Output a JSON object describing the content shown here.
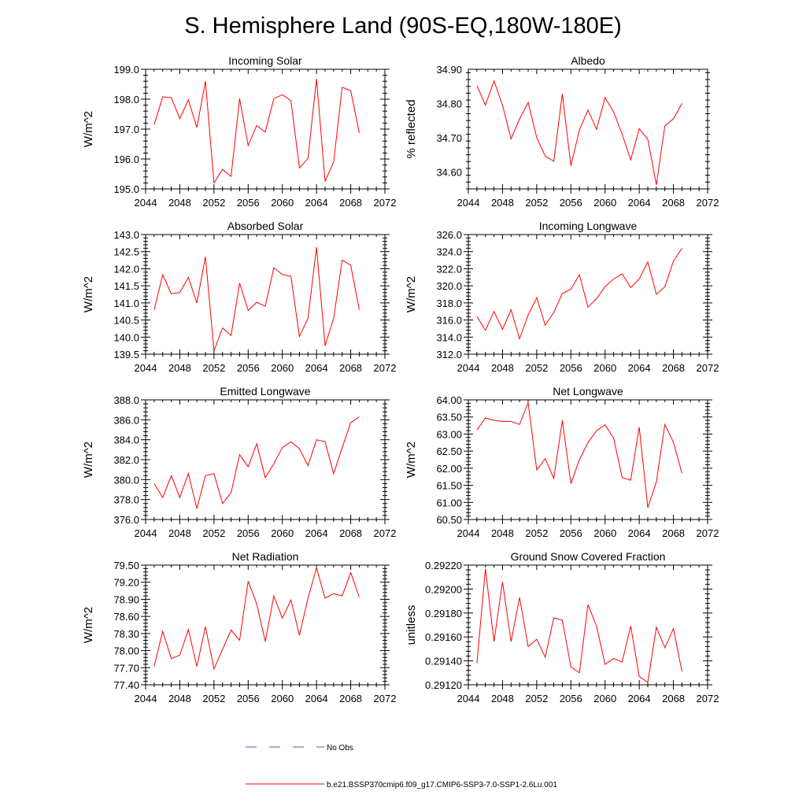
{
  "figure": {
    "title": "S. Hemisphere Land (90S-EQ,180W-180E)",
    "legend": [
      {
        "label": "No Obs",
        "color": "#5a5ab4",
        "dashed": true
      },
      {
        "label": "b.e21.BSSP370cmip6.f09_g17.CMIP6-SSP3-7.0-SSP1-2.6Lu.001",
        "color": "#ff0000",
        "dashed": false
      }
    ]
  },
  "chart_data": [
    {
      "type": "line",
      "title": "Incoming Solar",
      "ylabel": "W/m^2",
      "xlim": [
        2044,
        2072
      ],
      "ylim": [
        195.0,
        199.0
      ],
      "xticks": [
        2044,
        2048,
        2052,
        2056,
        2060,
        2064,
        2068,
        2072
      ],
      "yticks": [
        195.0,
        196.0,
        197.0,
        198.0,
        199.0
      ],
      "ytick_labels": [
        "195.0",
        "196.0",
        "197.0",
        "198.0",
        "199.0"
      ],
      "color": "#ff0000",
      "x": [
        2045,
        2046,
        2047,
        2048,
        2049,
        2050,
        2051,
        2052,
        2053,
        2054,
        2055,
        2056,
        2057,
        2058,
        2059,
        2060,
        2061,
        2062,
        2063,
        2064,
        2065,
        2066,
        2067,
        2068,
        2069
      ],
      "y": [
        197.15,
        198.08,
        198.05,
        197.35,
        197.98,
        197.05,
        198.6,
        195.2,
        195.65,
        195.42,
        198.02,
        196.45,
        197.12,
        196.9,
        198.02,
        198.15,
        197.95,
        195.7,
        196.02,
        198.68,
        195.25,
        195.9,
        198.4,
        198.28,
        196.88
      ]
    },
    {
      "type": "line",
      "title": "Albedo",
      "ylabel": "% reflected",
      "xlim": [
        2044,
        2072
      ],
      "ylim": [
        34.55,
        34.9
      ],
      "xticks": [
        2044,
        2048,
        2052,
        2056,
        2060,
        2064,
        2068,
        2072
      ],
      "yticks": [
        34.6,
        34.7,
        34.8,
        34.9
      ],
      "ytick_labels": [
        "34.60",
        "34.70",
        "34.80",
        "34.90"
      ],
      "color": "#ff0000",
      "x": [
        2045,
        2046,
        2047,
        2048,
        2049,
        2050,
        2051,
        2052,
        2053,
        2054,
        2055,
        2056,
        2057,
        2058,
        2059,
        2060,
        2061,
        2062,
        2063,
        2064,
        2065,
        2066,
        2067,
        2068,
        2069
      ],
      "y": [
        34.852,
        34.795,
        34.866,
        34.795,
        34.696,
        34.755,
        34.803,
        34.7,
        34.646,
        34.631,
        34.828,
        34.618,
        34.722,
        34.781,
        34.724,
        34.817,
        34.775,
        34.71,
        34.635,
        34.726,
        34.695,
        34.562,
        34.735,
        34.755,
        34.8
      ]
    },
    {
      "type": "line",
      "title": "Absorbed Solar",
      "ylabel": "W/m^2",
      "xlim": [
        2044,
        2072
      ],
      "ylim": [
        139.5,
        143.0
      ],
      "xticks": [
        2044,
        2048,
        2052,
        2056,
        2060,
        2064,
        2068,
        2072
      ],
      "yticks": [
        139.5,
        140.0,
        140.5,
        141.0,
        141.5,
        142.0,
        142.5,
        143.0
      ],
      "ytick_labels": [
        "139.5",
        "140.0",
        "140.5",
        "141.0",
        "141.5",
        "142.0",
        "142.5",
        "143.0"
      ],
      "color": "#ff0000",
      "x": [
        2045,
        2046,
        2047,
        2048,
        2049,
        2050,
        2051,
        2052,
        2053,
        2054,
        2055,
        2056,
        2057,
        2058,
        2059,
        2060,
        2061,
        2062,
        2063,
        2064,
        2065,
        2066,
        2067,
        2068,
        2069
      ],
      "y": [
        140.8,
        141.82,
        141.27,
        141.3,
        141.75,
        141.0,
        142.35,
        139.6,
        140.27,
        140.05,
        141.58,
        140.78,
        141.02,
        140.9,
        142.03,
        141.83,
        141.78,
        140.02,
        140.55,
        142.63,
        139.75,
        140.55,
        142.25,
        142.1,
        140.8
      ]
    },
    {
      "type": "line",
      "title": "Incoming Longwave",
      "ylabel": "W/m^2",
      "xlim": [
        2044,
        2072
      ],
      "ylim": [
        312.0,
        326.0
      ],
      "xticks": [
        2044,
        2048,
        2052,
        2056,
        2060,
        2064,
        2068,
        2072
      ],
      "yticks": [
        312.0,
        314.0,
        316.0,
        318.0,
        320.0,
        322.0,
        324.0,
        326.0
      ],
      "ytick_labels": [
        "312.0",
        "314.0",
        "316.0",
        "318.0",
        "320.0",
        "322.0",
        "324.0",
        "326.0"
      ],
      "color": "#ff0000",
      "x": [
        2045,
        2046,
        2047,
        2048,
        2049,
        2050,
        2051,
        2052,
        2053,
        2054,
        2055,
        2056,
        2057,
        2058,
        2059,
        2060,
        2061,
        2062,
        2063,
        2064,
        2065,
        2066,
        2067,
        2068,
        2069
      ],
      "y": [
        316.4,
        314.8,
        317.0,
        314.9,
        317.2,
        313.8,
        316.6,
        318.6,
        315.4,
        316.9,
        319.1,
        319.6,
        321.3,
        317.5,
        318.5,
        319.9,
        320.8,
        321.4,
        319.8,
        320.8,
        322.8,
        319.0,
        319.9,
        322.9,
        324.4
      ]
    },
    {
      "type": "line",
      "title": "Emitted Longwave",
      "ylabel": "W/m^2",
      "xlim": [
        2044,
        2072
      ],
      "ylim": [
        376.0,
        388.0
      ],
      "xticks": [
        2044,
        2048,
        2052,
        2056,
        2060,
        2064,
        2068,
        2072
      ],
      "yticks": [
        376.0,
        378.0,
        380.0,
        382.0,
        384.0,
        386.0,
        388.0
      ],
      "ytick_labels": [
        "376.0",
        "378.0",
        "380.0",
        "382.0",
        "384.0",
        "386.0",
        "388.0"
      ],
      "color": "#ff0000",
      "x": [
        2045,
        2046,
        2047,
        2048,
        2049,
        2050,
        2051,
        2052,
        2053,
        2054,
        2055,
        2056,
        2057,
        2058,
        2059,
        2060,
        2061,
        2062,
        2063,
        2064,
        2065,
        2066,
        2067,
        2068,
        2069
      ],
      "y": [
        379.6,
        378.2,
        380.4,
        378.2,
        380.6,
        377.1,
        380.4,
        380.6,
        377.6,
        378.7,
        382.5,
        381.3,
        383.6,
        380.2,
        381.6,
        383.2,
        383.8,
        383.1,
        381.4,
        384.0,
        383.8,
        380.6,
        383.2,
        385.7,
        386.3
      ]
    },
    {
      "type": "line",
      "title": "Net Longwave",
      "ylabel": "W/m^2",
      "xlim": [
        2044,
        2072
      ],
      "ylim": [
        60.5,
        64.0
      ],
      "xticks": [
        2044,
        2048,
        2052,
        2056,
        2060,
        2064,
        2068,
        2072
      ],
      "yticks": [
        60.5,
        61.0,
        61.5,
        62.0,
        62.5,
        63.0,
        63.5,
        64.0
      ],
      "ytick_labels": [
        "60.50",
        "61.00",
        "61.50",
        "62.00",
        "62.50",
        "63.00",
        "63.50",
        "64.00"
      ],
      "color": "#ff0000",
      "x": [
        2045,
        2046,
        2047,
        2048,
        2049,
        2050,
        2051,
        2052,
        2053,
        2054,
        2055,
        2056,
        2057,
        2058,
        2059,
        2060,
        2061,
        2062,
        2063,
        2064,
        2065,
        2066,
        2067,
        2068,
        2069
      ],
      "y": [
        63.12,
        63.47,
        63.4,
        63.37,
        63.37,
        63.28,
        63.92,
        61.95,
        62.28,
        61.7,
        63.4,
        61.55,
        62.25,
        62.75,
        63.1,
        63.27,
        62.88,
        61.73,
        61.65,
        63.2,
        60.85,
        61.6,
        63.28,
        62.76,
        61.85
      ]
    },
    {
      "type": "line",
      "title": "Net Radiation",
      "ylabel": "W/m^2",
      "xlim": [
        2044,
        2072
      ],
      "ylim": [
        77.4,
        79.5
      ],
      "xticks": [
        2044,
        2048,
        2052,
        2056,
        2060,
        2064,
        2068,
        2072
      ],
      "yticks": [
        77.4,
        77.7,
        78.0,
        78.3,
        78.6,
        78.9,
        79.2,
        79.5
      ],
      "ytick_labels": [
        "77.40",
        "77.70",
        "78.00",
        "78.30",
        "78.60",
        "78.90",
        "79.20",
        "79.50"
      ],
      "color": "#ff0000",
      "x": [
        2045,
        2046,
        2047,
        2048,
        2049,
        2050,
        2051,
        2052,
        2053,
        2054,
        2055,
        2056,
        2057,
        2058,
        2059,
        2060,
        2061,
        2062,
        2063,
        2064,
        2065,
        2066,
        2067,
        2068,
        2069
      ],
      "y": [
        77.72,
        78.34,
        77.86,
        77.92,
        78.37,
        77.72,
        78.42,
        77.68,
        78.02,
        78.36,
        78.18,
        79.22,
        78.82,
        78.16,
        78.96,
        78.57,
        78.89,
        78.27,
        78.92,
        79.45,
        78.92,
        79.0,
        78.96,
        79.37,
        78.94
      ]
    },
    {
      "type": "line",
      "title": "Ground Snow Covered Fraction",
      "ylabel": "unitless",
      "xlim": [
        2044,
        2072
      ],
      "ylim": [
        0.2912,
        0.2922
      ],
      "xticks": [
        2044,
        2048,
        2052,
        2056,
        2060,
        2064,
        2068,
        2072
      ],
      "yticks": [
        0.2912,
        0.2914,
        0.2916,
        0.2918,
        0.292,
        0.2922
      ],
      "ytick_labels": [
        "0.29120",
        "0.29140",
        "0.29160",
        "0.29180",
        "0.29200",
        "0.29220"
      ],
      "color": "#ff0000",
      "x": [
        2045,
        2046,
        2047,
        2048,
        2049,
        2050,
        2051,
        2052,
        2053,
        2054,
        2055,
        2056,
        2057,
        2058,
        2059,
        2060,
        2061,
        2062,
        2063,
        2064,
        2065,
        2066,
        2067,
        2068,
        2069
      ],
      "y": [
        0.29138,
        0.29217,
        0.29156,
        0.29206,
        0.29156,
        0.29193,
        0.29152,
        0.29158,
        0.29143,
        0.29176,
        0.29174,
        0.29135,
        0.2913,
        0.29187,
        0.29169,
        0.29137,
        0.29142,
        0.29139,
        0.29169,
        0.29127,
        0.29122,
        0.29168,
        0.29151,
        0.29167,
        0.29131
      ]
    }
  ]
}
